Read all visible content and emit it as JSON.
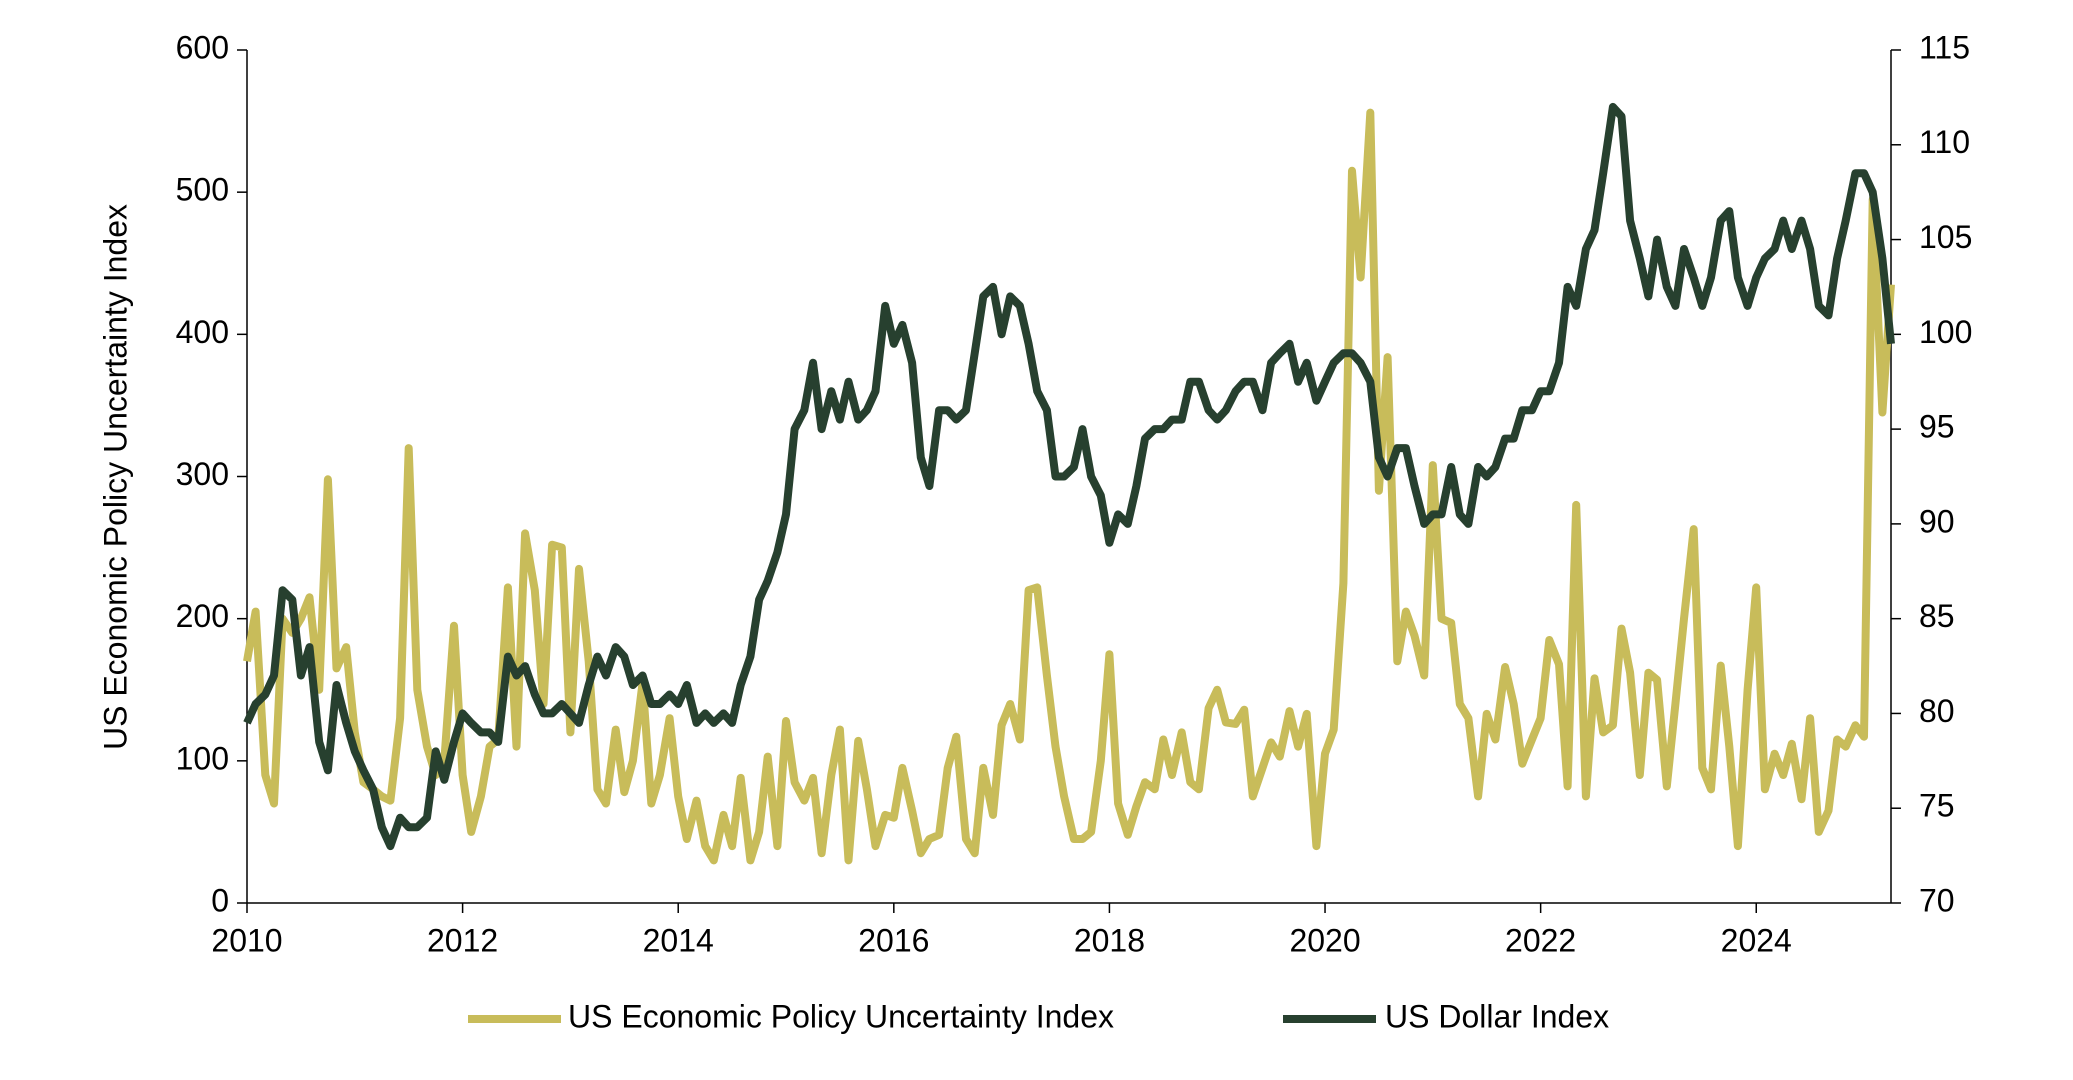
{
  "chart_data": {
    "type": "line",
    "ylabel": "US Economic Policy Uncertainty Index",
    "x": [
      2010.0,
      2010.08,
      2010.17,
      2010.25,
      2010.33,
      2010.42,
      2010.5,
      2010.58,
      2010.67,
      2010.75,
      2010.83,
      2010.92,
      2011.0,
      2011.08,
      2011.17,
      2011.25,
      2011.33,
      2011.42,
      2011.5,
      2011.58,
      2011.67,
      2011.75,
      2011.83,
      2011.92,
      2012.0,
      2012.08,
      2012.17,
      2012.25,
      2012.33,
      2012.42,
      2012.5,
      2012.58,
      2012.67,
      2012.75,
      2012.83,
      2012.92,
      2013.0,
      2013.08,
      2013.17,
      2013.25,
      2013.33,
      2013.42,
      2013.5,
      2013.58,
      2013.67,
      2013.75,
      2013.83,
      2013.92,
      2014.0,
      2014.08,
      2014.17,
      2014.25,
      2014.33,
      2014.42,
      2014.5,
      2014.58,
      2014.67,
      2014.75,
      2014.83,
      2014.92,
      2015.0,
      2015.08,
      2015.17,
      2015.25,
      2015.33,
      2015.42,
      2015.5,
      2015.58,
      2015.67,
      2015.75,
      2015.83,
      2015.92,
      2016.0,
      2016.08,
      2016.17,
      2016.25,
      2016.33,
      2016.42,
      2016.5,
      2016.58,
      2016.67,
      2016.75,
      2016.83,
      2016.92,
      2017.0,
      2017.08,
      2017.17,
      2017.25,
      2017.33,
      2017.42,
      2017.5,
      2017.58,
      2017.67,
      2017.75,
      2017.83,
      2017.92,
      2018.0,
      2018.08,
      2018.17,
      2018.25,
      2018.33,
      2018.42,
      2018.5,
      2018.58,
      2018.67,
      2018.75,
      2018.83,
      2018.92,
      2019.0,
      2019.08,
      2019.17,
      2019.25,
      2019.33,
      2019.42,
      2019.5,
      2019.58,
      2019.67,
      2019.75,
      2019.83,
      2019.92,
      2020.0,
      2020.08,
      2020.17,
      2020.25,
      2020.33,
      2020.42,
      2020.5,
      2020.58,
      2020.67,
      2020.75,
      2020.83,
      2020.92,
      2021.0,
      2021.08,
      2021.17,
      2021.25,
      2021.33,
      2021.42,
      2021.5,
      2021.58,
      2021.67,
      2021.75,
      2021.83,
      2021.92,
      2022.0,
      2022.08,
      2022.17,
      2022.25,
      2022.33,
      2022.42,
      2022.5,
      2022.58,
      2022.67,
      2022.75,
      2022.83,
      2022.92,
      2023.0,
      2023.08,
      2023.17,
      2023.25,
      2023.33,
      2023.42,
      2023.5,
      2023.58,
      2023.67,
      2023.75,
      2023.83,
      2023.92,
      2024.0,
      2024.08,
      2024.17,
      2024.25,
      2024.33,
      2024.42,
      2024.5,
      2024.58,
      2024.67,
      2024.75,
      2024.83,
      2024.92,
      2025.0,
      2025.08,
      2025.17,
      2025.25
    ],
    "series": [
      {
        "name": "US Economic Policy Uncertainty Index",
        "color": "#c8bc5a",
        "values": [
          170,
          205,
          90,
          70,
          200,
          190,
          200,
          215,
          150,
          298,
          165,
          180,
          120,
          85,
          80,
          75,
          72,
          130,
          320,
          150,
          110,
          90,
          100,
          195,
          90,
          50,
          75,
          110,
          115,
          222,
          110,
          260,
          220,
          140,
          252,
          250,
          120,
          235,
          170,
          80,
          70,
          122,
          78,
          100,
          155,
          70,
          90,
          130,
          75,
          45,
          72,
          40,
          30,
          62,
          40,
          88,
          30,
          50,
          103,
          40,
          128,
          85,
          72,
          88,
          35,
          90,
          122,
          30,
          114,
          80,
          40,
          62,
          60,
          95,
          65,
          35,
          45,
          48,
          95,
          117,
          45,
          35,
          95,
          62,
          125,
          140,
          115,
          220,
          222,
          160,
          110,
          75,
          45,
          45,
          50,
          100,
          175,
          70,
          48,
          68,
          85,
          80,
          115,
          90,
          120,
          85,
          80,
          137,
          150,
          127,
          126,
          136,
          75,
          95,
          113,
          103,
          135,
          110,
          133,
          40,
          105,
          122,
          225,
          515,
          440,
          556,
          290,
          384,
          170,
          205,
          188,
          160,
          308,
          200,
          197,
          140,
          130,
          75,
          133,
          115,
          166,
          140,
          98,
          115,
          130,
          185,
          168,
          82,
          280,
          75,
          158,
          120,
          125,
          193,
          162,
          90,
          162,
          157,
          82,
          140,
          200,
          263,
          95,
          80,
          167,
          110,
          40,
          150,
          222,
          80,
          105,
          90,
          112,
          73,
          130,
          50,
          65,
          115,
          110,
          125,
          117,
          495,
          345,
          435
        ]
      },
      {
        "name": "US Dollar Index",
        "color": "#27402f",
        "axis": "y2",
        "values": [
          79.5,
          80.5,
          81,
          82,
          86.5,
          86,
          82,
          83.5,
          78.5,
          77,
          81.5,
          79.5,
          78,
          77,
          76,
          74,
          73,
          74.5,
          74,
          74,
          74.5,
          78,
          76.5,
          78.5,
          80,
          79.5,
          79,
          79,
          78.5,
          83,
          82,
          82.5,
          81,
          80,
          80,
          80.5,
          80,
          79.5,
          81.5,
          83,
          82,
          83.5,
          83,
          81.5,
          82,
          80.5,
          80.5,
          81,
          80.5,
          81.5,
          79.5,
          80,
          79.5,
          80,
          79.5,
          81.5,
          83,
          86,
          87,
          88.5,
          90.5,
          95,
          96,
          98.5,
          95,
          97,
          95.5,
          97.5,
          95.5,
          96,
          97,
          101.5,
          99.5,
          100.5,
          98.5,
          93.5,
          92,
          96,
          96,
          95.5,
          96,
          99,
          102,
          102.5,
          100,
          102,
          101.5,
          99.5,
          97,
          96,
          92.5,
          92.5,
          93,
          95,
          92.5,
          91.5,
          89,
          90.5,
          90,
          92,
          94.5,
          95,
          95,
          95.5,
          95.5,
          97.5,
          97.5,
          96,
          95.5,
          96,
          97,
          97.5,
          97.5,
          96,
          98.5,
          99,
          99.5,
          97.5,
          98.5,
          96.5,
          97.5,
          98.5,
          99,
          99,
          98.5,
          97.5,
          93.5,
          92.5,
          94,
          94,
          92,
          90,
          90.5,
          90.5,
          93,
          90.5,
          90,
          93,
          92.5,
          93,
          94.5,
          94.5,
          96,
          96,
          97,
          97,
          98.5,
          102.5,
          101.5,
          104.5,
          105.5,
          108.5,
          112,
          111.5,
          106,
          104,
          102,
          105,
          102.5,
          101.5,
          104.5,
          103,
          101.5,
          103,
          106,
          106.5,
          103,
          101.5,
          103,
          104,
          104.5,
          106,
          104.5,
          106,
          104.5,
          101.5,
          101,
          104,
          106,
          108.5,
          108.5,
          107.5,
          104,
          99.5
        ]
      }
    ],
    "xlim": [
      2010,
      2025.25
    ],
    "xticks": [
      2010,
      2012,
      2014,
      2016,
      2018,
      2020,
      2022,
      2024
    ],
    "ylim": [
      0,
      600
    ],
    "yticks": [
      0,
      100,
      200,
      300,
      400,
      500,
      600
    ],
    "y2lim": [
      70,
      115
    ],
    "y2ticks": [
      70,
      75,
      80,
      85,
      90,
      95,
      100,
      105,
      110,
      115
    ],
    "legend": "bottom"
  }
}
